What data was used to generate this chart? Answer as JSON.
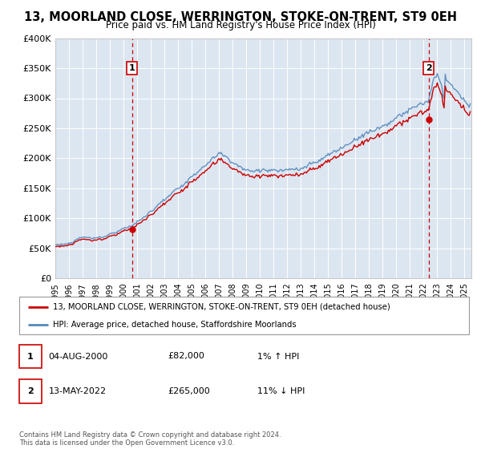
{
  "title": "13, MOORLAND CLOSE, WERRINGTON, STOKE-ON-TRENT, ST9 0EH",
  "subtitle": "Price paid vs. HM Land Registry's House Price Index (HPI)",
  "background_color": "#dce6f1",
  "sale1_x": 2000.625,
  "sale1_price": 82000,
  "sale2_x": 2022.375,
  "sale2_price": 265000,
  "legend_line1": "13, MOORLAND CLOSE, WERRINGTON, STOKE-ON-TRENT, ST9 0EH (detached house)",
  "legend_line2": "HPI: Average price, detached house, Staffordshire Moorlands",
  "footer": "Contains HM Land Registry data © Crown copyright and database right 2024.\nThis data is licensed under the Open Government Licence v3.0.",
  "red_color": "#cc0000",
  "blue_color": "#5588bb",
  "ylim": [
    0,
    400000
  ],
  "yticks": [
    0,
    50000,
    100000,
    150000,
    200000,
    250000,
    300000,
    350000,
    400000
  ],
  "xlim_start": 1995,
  "xlim_end": 2025.5
}
